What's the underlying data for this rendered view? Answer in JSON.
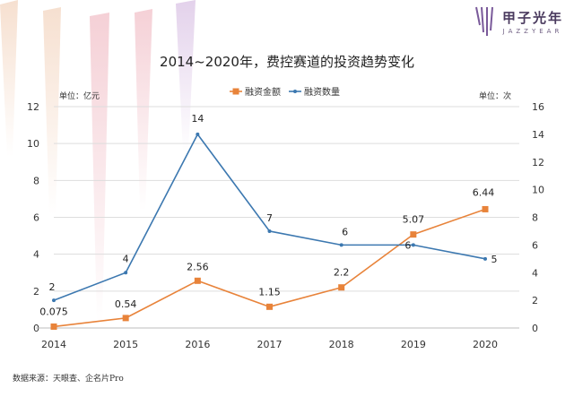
{
  "brand": {
    "name_cn": "甲子光年",
    "name_en": "JAZZYEAR"
  },
  "colors": {
    "amount": "#e8833a",
    "count": "#3c78b0",
    "grid": "#dddddd",
    "axis": "#333333"
  },
  "source": "数据来源：天眼查、企名片Pro",
  "chart_data": {
    "type": "line",
    "title": "2014~2020年，费控赛道的投资趋势变化",
    "x": [
      "2014",
      "2015",
      "2016",
      "2017",
      "2018",
      "2019",
      "2020"
    ],
    "left_unit": "单位：亿元",
    "right_unit": "单位：次",
    "ylim_left": [
      0,
      12
    ],
    "ylim_right": [
      0,
      16
    ],
    "yticks_left": [
      "0",
      "2",
      "4",
      "6",
      "8",
      "10",
      "12"
    ],
    "yticks_right": [
      "0",
      "2",
      "4",
      "6",
      "8",
      "10",
      "12",
      "14",
      "16"
    ],
    "grid": true,
    "legend_position": "top-center",
    "series": [
      {
        "name": "融资金额",
        "axis": "left",
        "marker": "square",
        "values": [
          0.075,
          0.54,
          2.56,
          1.15,
          2.2,
          5.07,
          6.44
        ],
        "labels": [
          "0.075",
          "0.54",
          "2.56",
          "1.15",
          "2.2",
          "5.07",
          "6.44"
        ]
      },
      {
        "name": "融资数量",
        "axis": "right",
        "marker": "dot",
        "values": [
          2,
          4,
          14,
          7,
          6,
          6,
          5
        ],
        "labels": [
          "2",
          "4",
          "14",
          "7",
          "6",
          "6",
          "5"
        ]
      }
    ]
  }
}
